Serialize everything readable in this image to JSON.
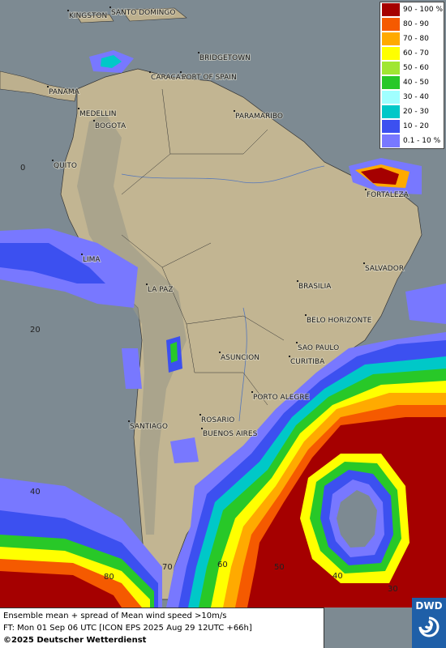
{
  "legend": {
    "entries": [
      {
        "label": "90 - 100 %",
        "color": "#a50000"
      },
      {
        "label": "80 - 90",
        "color": "#f55a00"
      },
      {
        "label": "70 - 80",
        "color": "#ffaa00"
      },
      {
        "label": "60 - 70",
        "color": "#ffff00"
      },
      {
        "label": "50 - 60",
        "color": "#a0e632"
      },
      {
        "label": "40 - 50",
        "color": "#28c828"
      },
      {
        "label": "30 - 40",
        "color": "#a0ffff"
      },
      {
        "label": "20 - 30",
        "color": "#00c8c8"
      },
      {
        "label": "10 - 20",
        "color": "#3c50f0"
      },
      {
        "label": "0.1 - 10 %",
        "color": "#7878ff"
      }
    ]
  },
  "cities": [
    "KINGSTON",
    "SANTO DOMINGO",
    "BRIDGETOWN",
    "CARACAS",
    "PORT OF SPAIN",
    "PANAMA",
    "MEDELLIN",
    "BOGOTA",
    "PARAMARIBO",
    "QUITO",
    "FORTALEZA",
    "LIMA",
    "SALVADOR",
    "LA PAZ",
    "BRASILIA",
    "BELO HORIZONTE",
    "SAO PAULO",
    "ASUNCION",
    "CURITIBA",
    "PORTO ALEGRE",
    "ROSARIO",
    "SANTIAGO",
    "BUENOS AIRES"
  ],
  "grid_labels": [
    "0",
    "20",
    "40",
    "80",
    "70",
    "60",
    "50",
    "40",
    "30"
  ],
  "caption": {
    "lines": [
      "Ensemble mean + spread of Mean wind speed >10m/s",
      "FT: Mon 01 Sep 06 UTC [ICON EPS 2025 Aug 29 12UTC +66h]",
      "©2025 Deutscher Wetterdienst"
    ]
  },
  "logo": "DWD"
}
